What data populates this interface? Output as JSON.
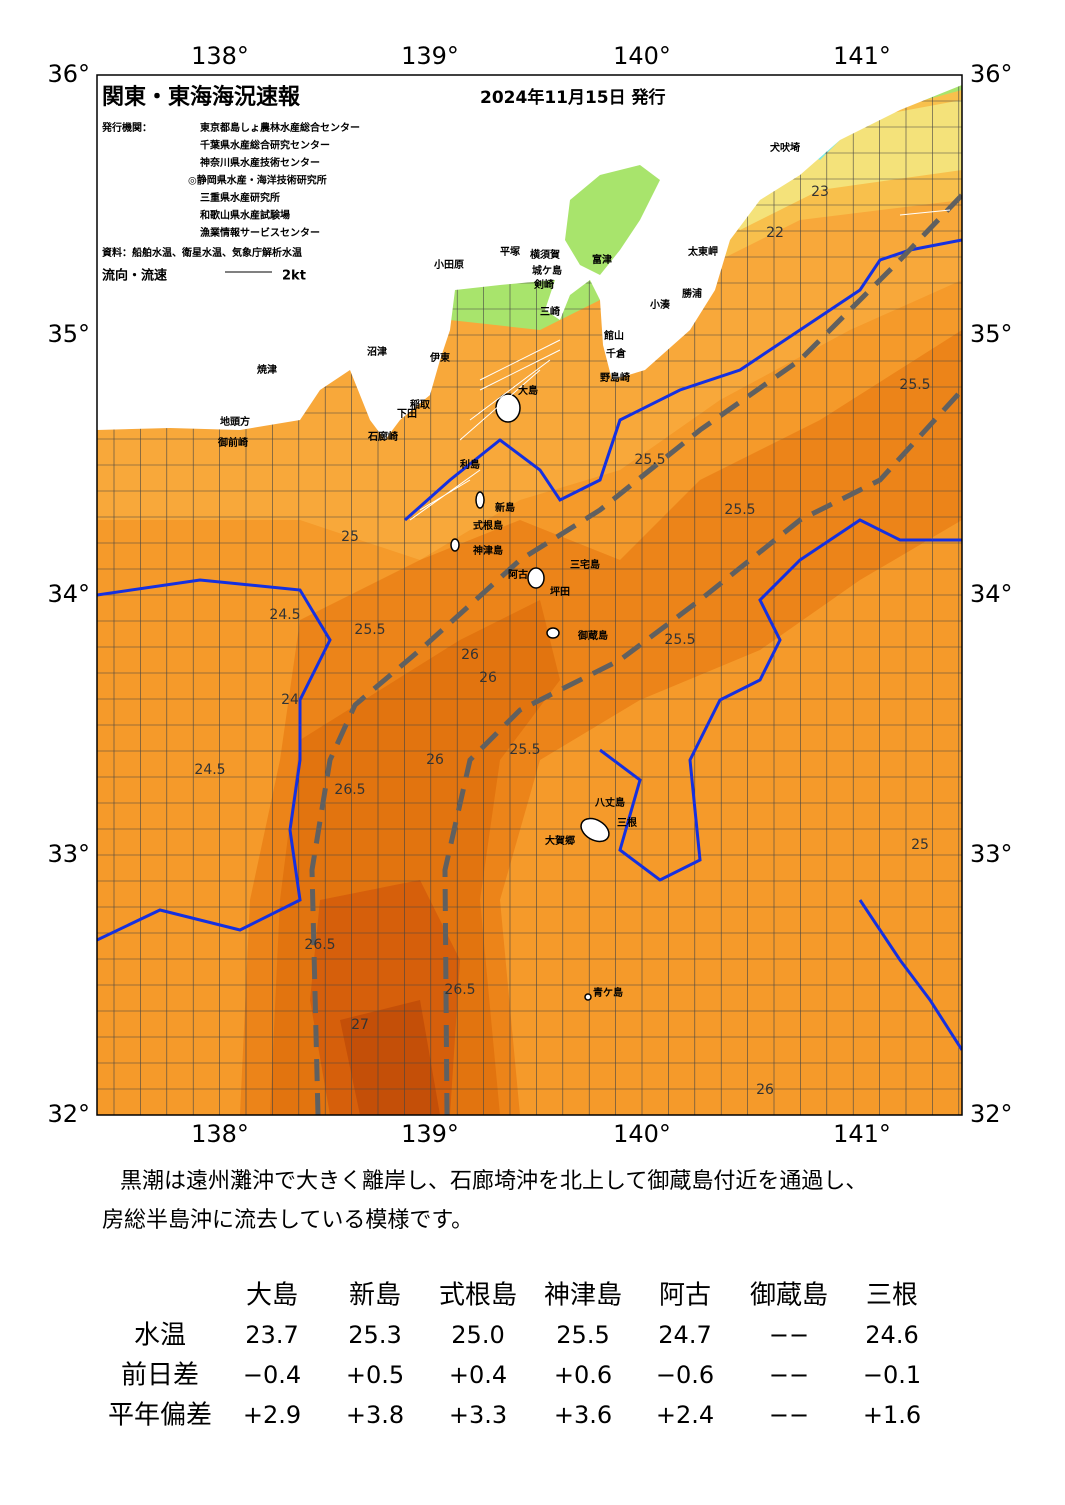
{
  "header": {
    "title": "関東・東海海況速報",
    "date": "2024年11月15日 発行"
  },
  "issuers": {
    "label": "発行機関：",
    "names": [
      "東京都島しょ農林水産総合センター",
      "千葉県水産総合研究センター",
      "神奈川県水産技術センター",
      "◎静岡県水産・海洋技術研究所",
      "三重県水産研究所",
      "和歌山県水産試験場",
      "漁業情報サービスセンター"
    ]
  },
  "source": "資料：船舶水温、衛星水温、気象庁解析水温",
  "legend": {
    "label": "流向・流速",
    "scale": "2kt"
  },
  "axes": {
    "lon": [
      "138°",
      "139°",
      "140°",
      "141°"
    ],
    "lat": [
      "36°",
      "35°",
      "34°",
      "33°",
      "32°"
    ]
  },
  "places": [
    "犬吠埼",
    "太東岬",
    "勝浦",
    "小湊",
    "館山",
    "千倉",
    "野島崎",
    "富津",
    "平塚",
    "横須賀",
    "城ケ島",
    "剣崎",
    "三崎",
    "小田原",
    "沼津",
    "伊東",
    "焼津",
    "地頭方",
    "御前崎",
    "稲取",
    "下田",
    "石廊崎",
    "大島",
    "利島",
    "新島",
    "式根島",
    "神津島",
    "三宅島",
    "阿古",
    "坪田",
    "御蔵島",
    "八丈島",
    "三根",
    "大賀郷",
    "青ケ島"
  ],
  "contours": [
    "23",
    "22",
    "24",
    "24.5",
    "25",
    "25.5",
    "26",
    "26.5",
    "27"
  ],
  "description": [
    "黒潮は遠州灘沖で大きく離岸し、石廊埼沖を北上して御蔵島付近を通過し、",
    "房総半島沖に流去している模様です。"
  ],
  "table": {
    "columns": [
      "大島",
      "新島",
      "式根島",
      "神津島",
      "阿古",
      "御蔵島",
      "三根"
    ],
    "rows": [
      {
        "label": "水温",
        "cells": [
          "23.7",
          "25.3",
          "25.0",
          "25.5",
          "24.7",
          "−−",
          "24.6"
        ]
      },
      {
        "label": "前日差",
        "cells": [
          "−0.4",
          "+0.5",
          "+0.4",
          "+0.6",
          "−0.6",
          "−−",
          "−0.1"
        ]
      },
      {
        "label": "平年偏差",
        "cells": [
          "+2.9",
          "+3.8",
          "+3.3",
          "+3.6",
          "+2.4",
          "−−",
          "+1.6"
        ]
      }
    ]
  }
}
